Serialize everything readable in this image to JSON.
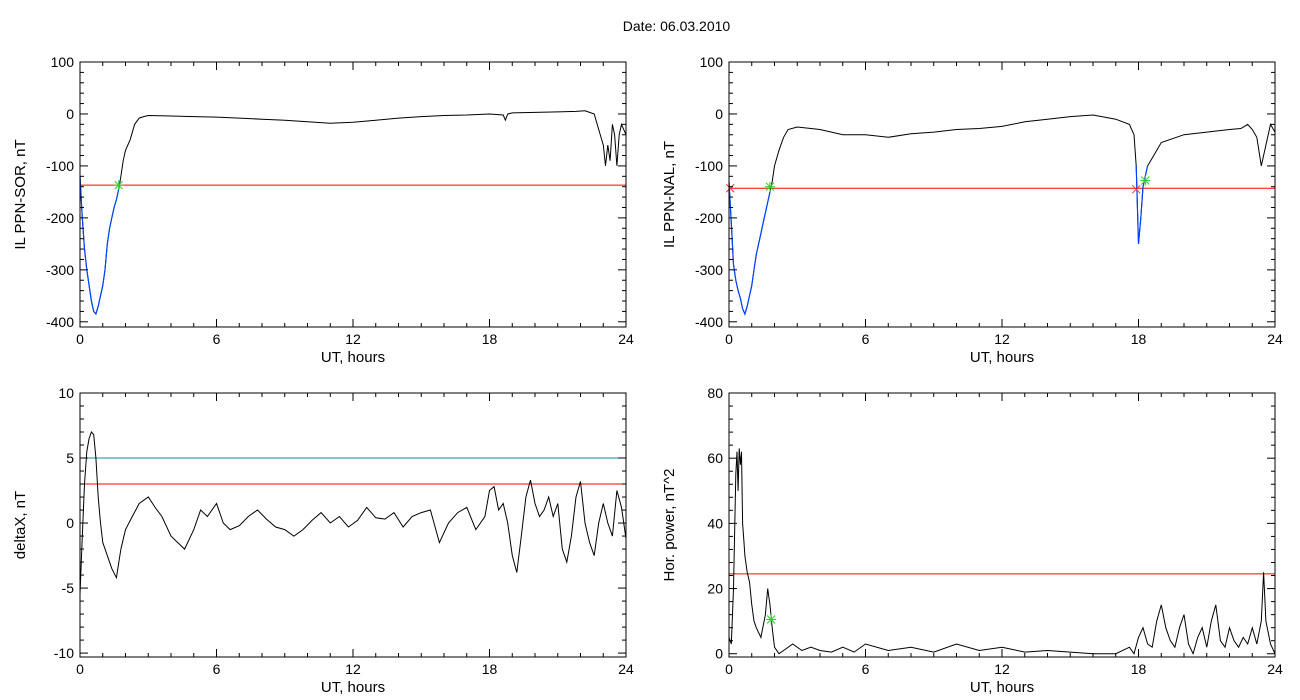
{
  "figure_title": "Date:  06.03.2010",
  "colors": {
    "trace": "#000000",
    "threshold": "#ff0000",
    "level2": "#009999",
    "highlight": "#0044ff",
    "marker_start": "#ff3333",
    "marker_end": "#33cc33"
  },
  "chart_data": [
    {
      "type": "line",
      "ylabel": "IL PPN-SOR, nT",
      "xlabel": "UT, hours",
      "xlim": [
        0,
        24
      ],
      "ylim": [
        -410,
        100
      ],
      "xticks": [
        0,
        6,
        12,
        18,
        24
      ],
      "yticks": [
        -400,
        -300,
        -200,
        -100,
        0,
        100
      ],
      "ytick_labels": [
        "-400",
        "-300",
        "-200",
        "-100",
        "0",
        "100"
      ],
      "hlines": [
        {
          "y": -137,
          "color": "#ff0000"
        }
      ],
      "highlight_range": [
        0,
        1.7
      ],
      "markers": [
        {
          "x": 1.7,
          "y": -137,
          "symbol": "*",
          "color": "#33cc33"
        }
      ],
      "series": [
        {
          "x": [
            0,
            0.1,
            0.2,
            0.3,
            0.4,
            0.5,
            0.6,
            0.7,
            0.8,
            0.9,
            1.0,
            1.1,
            1.2,
            1.3,
            1.4,
            1.5,
            1.6,
            1.7,
            1.8,
            1.9,
            2.0,
            2.2,
            2.4,
            2.6,
            2.8,
            3,
            4,
            5,
            6,
            7,
            8,
            9,
            10,
            11,
            12,
            13,
            14,
            15,
            16,
            17,
            18,
            18.6,
            18.7,
            18.8,
            19,
            20,
            21,
            21.8,
            22.2,
            22.4,
            22.6,
            22.8,
            23.0,
            23.1,
            23.2,
            23.3,
            23.4,
            23.5,
            23.6,
            23.7,
            23.8,
            24
          ],
          "y": [
            -120,
            -200,
            -260,
            -300,
            -330,
            -360,
            -380,
            -385,
            -370,
            -350,
            -330,
            -300,
            -250,
            -220,
            -200,
            -180,
            -165,
            -145,
            -120,
            -90,
            -70,
            -50,
            -20,
            -8,
            -5,
            -3,
            -4,
            -5,
            -6,
            -8,
            -10,
            -12,
            -15,
            -18,
            -16,
            -12,
            -8,
            -5,
            -3,
            -2,
            0,
            -2,
            -12,
            0,
            2,
            3,
            4,
            5,
            6,
            3,
            0,
            -30,
            -60,
            -100,
            -60,
            -90,
            -20,
            -40,
            -100,
            -40,
            -20,
            -40
          ]
        }
      ]
    },
    {
      "type": "line",
      "ylabel": "IL PPN-NAL, nT",
      "xlabel": "UT, hours",
      "xlim": [
        0,
        24
      ],
      "ylim": [
        -410,
        100
      ],
      "xticks": [
        0,
        6,
        12,
        18,
        24
      ],
      "yticks": [
        -400,
        -300,
        -200,
        -100,
        0,
        100
      ],
      "ytick_labels": [
        "-400",
        "-300",
        "-200",
        "-100",
        "0",
        "100"
      ],
      "hlines": [
        {
          "y": -143,
          "color": "#ff0000"
        }
      ],
      "highlight_range": [
        0,
        1.8
      ],
      "highlight_range2": [
        17.9,
        18.4
      ],
      "markers": [
        {
          "x": 0.05,
          "y": -143,
          "symbol": "x",
          "color": "#ff3333"
        },
        {
          "x": 1.8,
          "y": -140,
          "symbol": "*",
          "color": "#33cc33"
        },
        {
          "x": 17.9,
          "y": -145,
          "symbol": "x",
          "color": "#ff3333"
        },
        {
          "x": 18.3,
          "y": -128,
          "symbol": "*",
          "color": "#33cc33"
        }
      ],
      "series": [
        {
          "x": [
            0,
            0.1,
            0.2,
            0.3,
            0.4,
            0.5,
            0.6,
            0.7,
            0.8,
            0.9,
            1.0,
            1.1,
            1.2,
            1.3,
            1.4,
            1.5,
            1.6,
            1.7,
            1.8,
            1.9,
            2.0,
            2.2,
            2.4,
            2.6,
            3,
            4,
            5,
            6,
            7,
            8,
            9,
            10,
            11,
            12,
            13,
            14,
            15,
            16,
            17,
            17.6,
            17.8,
            17.9,
            18.0,
            18.1,
            18.2,
            18.3,
            18.4,
            18.6,
            19,
            20,
            21,
            22,
            22.5,
            22.8,
            23.0,
            23.2,
            23.4,
            23.6,
            23.8,
            24
          ],
          "y": [
            -130,
            -210,
            -290,
            -320,
            -340,
            -355,
            -375,
            -385,
            -370,
            -350,
            -330,
            -300,
            -270,
            -250,
            -230,
            -210,
            -190,
            -170,
            -150,
            -130,
            -100,
            -70,
            -45,
            -30,
            -25,
            -30,
            -40,
            -40,
            -45,
            -38,
            -35,
            -30,
            -28,
            -24,
            -15,
            -10,
            -5,
            -2,
            -10,
            -20,
            -40,
            -100,
            -250,
            -200,
            -140,
            -120,
            -100,
            -85,
            -55,
            -40,
            -35,
            -30,
            -28,
            -20,
            -30,
            -45,
            -100,
            -60,
            -20,
            -35
          ]
        }
      ]
    },
    {
      "type": "line",
      "ylabel": "deltaX, nT",
      "xlabel": "UT, hours",
      "xlim": [
        0,
        24
      ],
      "ylim": [
        -10.3,
        10
      ],
      "xticks": [
        0,
        6,
        12,
        18,
        24
      ],
      "yticks": [
        -10,
        -5,
        0,
        5,
        10
      ],
      "ytick_labels": [
        "-10",
        "-5",
        "0",
        "5",
        "10"
      ],
      "hlines": [
        {
          "y": 5,
          "color": "#009999"
        },
        {
          "y": 3,
          "color": "#ff0000"
        }
      ],
      "series": [
        {
          "x": [
            0,
            0.1,
            0.2,
            0.3,
            0.4,
            0.5,
            0.6,
            0.7,
            0.8,
            0.9,
            1.0,
            1.2,
            1.4,
            1.6,
            1.8,
            2.0,
            2.3,
            2.6,
            3.0,
            3.3,
            3.6,
            4.0,
            4.3,
            4.6,
            5.0,
            5.3,
            5.6,
            6.0,
            6.3,
            6.6,
            7.0,
            7.4,
            7.8,
            8.2,
            8.6,
            9.0,
            9.4,
            9.8,
            10.2,
            10.6,
            11.0,
            11.4,
            11.8,
            12.2,
            12.6,
            13.0,
            13.4,
            13.8,
            14.2,
            14.6,
            15.0,
            15.4,
            15.8,
            16.2,
            16.6,
            17.0,
            17.4,
            17.8,
            18.0,
            18.2,
            18.4,
            18.6,
            18.8,
            19.0,
            19.2,
            19.4,
            19.6,
            19.8,
            20.0,
            20.2,
            20.4,
            20.6,
            20.8,
            21.0,
            21.2,
            21.4,
            21.6,
            21.8,
            22.0,
            22.2,
            22.4,
            22.6,
            22.8,
            23.0,
            23.2,
            23.4,
            23.6,
            23.8,
            24
          ],
          "y": [
            -5.5,
            -1,
            3,
            5.5,
            6.5,
            7,
            6.8,
            5,
            2,
            0,
            -1.5,
            -2.5,
            -3.5,
            -4.2,
            -2,
            -0.5,
            0.5,
            1.5,
            2,
            1.2,
            0.5,
            -1,
            -1.5,
            -2,
            -0.5,
            1,
            0.5,
            1.5,
            0,
            -0.5,
            -0.2,
            0.5,
            1,
            0.3,
            -0.3,
            -0.5,
            -1,
            -0.5,
            0.2,
            0.8,
            0,
            0.5,
            -0.3,
            0.2,
            1.2,
            0.4,
            0.3,
            0.8,
            -0.3,
            0.5,
            0.8,
            1,
            -1.5,
            0,
            0.8,
            1.2,
            -0.5,
            0.5,
            2.5,
            2.8,
            1,
            1.5,
            0,
            -2.5,
            -3.8,
            -1,
            2,
            3.3,
            1.5,
            0.5,
            1,
            2,
            0.5,
            1.5,
            -2,
            -3,
            -1,
            2,
            3.2,
            0,
            -1.5,
            -2.5,
            0,
            1.5,
            0,
            -1,
            2.5,
            1.2,
            -1.2
          ]
        }
      ]
    },
    {
      "type": "line",
      "ylabel": "Hor. power, nT^2",
      "xlabel": "UT, hours",
      "xlim": [
        0,
        24
      ],
      "ylim": [
        -1,
        80
      ],
      "xticks": [
        0,
        6,
        12,
        18,
        24
      ],
      "yticks": [
        0,
        20,
        40,
        60,
        80
      ],
      "ytick_labels": [
        "0",
        "20",
        "40",
        "60",
        "80"
      ],
      "hlines": [
        {
          "y": 24.5,
          "color": "#ff0000"
        }
      ],
      "markers": [
        {
          "x": 1.85,
          "y": 10.5,
          "symbol": "*",
          "color": "#33cc33"
        }
      ],
      "series": [
        {
          "x": [
            0,
            0.1,
            0.2,
            0.3,
            0.35,
            0.4,
            0.45,
            0.5,
            0.55,
            0.6,
            0.65,
            0.7,
            0.8,
            0.9,
            1.0,
            1.1,
            1.2,
            1.4,
            1.6,
            1.7,
            1.8,
            1.9,
            2.0,
            2.2,
            2.4,
            2.8,
            3.2,
            3.6,
            4.0,
            4.5,
            5.0,
            5.5,
            6.0,
            7,
            8,
            9,
            10,
            11,
            12,
            13,
            14,
            15,
            16,
            17,
            17.6,
            17.8,
            18.0,
            18.2,
            18.4,
            18.6,
            18.8,
            19.0,
            19.2,
            19.4,
            19.6,
            19.8,
            20.0,
            20.2,
            20.4,
            20.6,
            20.8,
            21.0,
            21.2,
            21.4,
            21.6,
            21.8,
            22.0,
            22.2,
            22.4,
            22.6,
            22.8,
            23.0,
            23.2,
            23.4,
            23.5,
            23.6,
            23.8,
            24
          ],
          "y": [
            5,
            3,
            20,
            55,
            62,
            50,
            63,
            58,
            62,
            40,
            35,
            30,
            25,
            22,
            15,
            10,
            8,
            5,
            12,
            20,
            15,
            8,
            2,
            0,
            1,
            3,
            1,
            2,
            1,
            0.5,
            2,
            0.5,
            3,
            1,
            2,
            0.5,
            3,
            1,
            2,
            0.5,
            1,
            0.5,
            0,
            0,
            2,
            0,
            5,
            8,
            3,
            2,
            10,
            15,
            8,
            4,
            2,
            8,
            12,
            3,
            0,
            5,
            8,
            2,
            10,
            15,
            4,
            2,
            8,
            4,
            2,
            5,
            3,
            8,
            3,
            10,
            25,
            10,
            3,
            0
          ]
        }
      ]
    }
  ]
}
